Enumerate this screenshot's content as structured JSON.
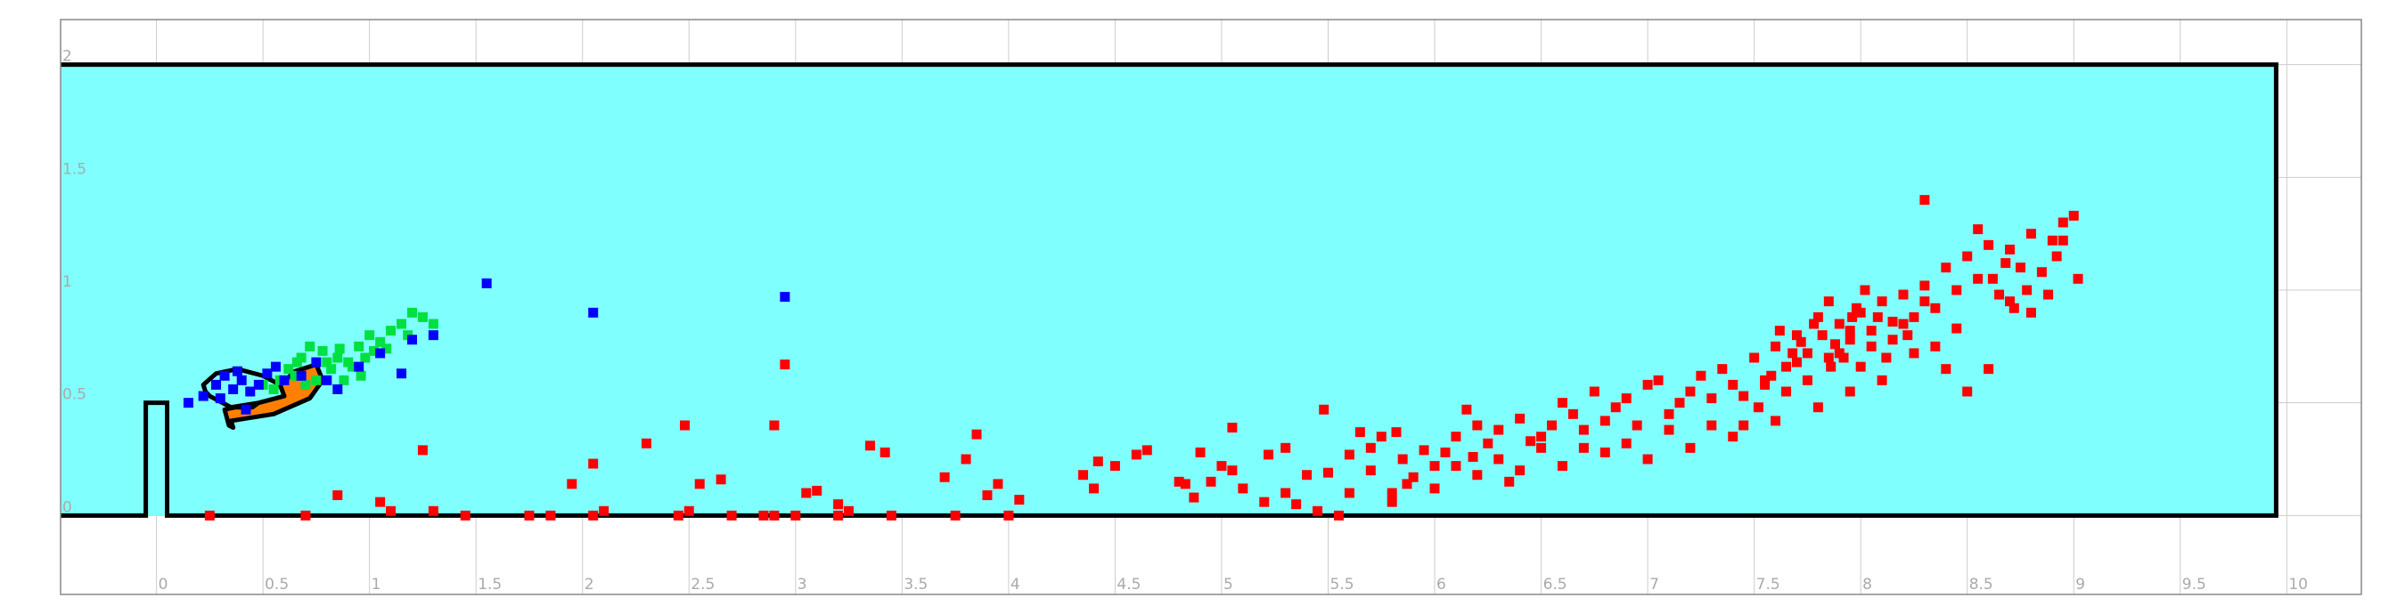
{
  "chart_data": {
    "type": "scatter",
    "title": "",
    "xlabel": "",
    "ylabel": "",
    "xlim": [
      -0.45,
      10.35
    ],
    "ylim": [
      -0.35,
      2.2
    ],
    "grid": true,
    "x_ticks": [
      0,
      0.5,
      1,
      1.5,
      2,
      2.5,
      3,
      3.5,
      4,
      4.5,
      5,
      5.5,
      6,
      6.5,
      7,
      7.5,
      8,
      8.5,
      9,
      9.5,
      10
    ],
    "x_tick_labels": [
      "0",
      "0.5",
      "1",
      "1.5",
      "2",
      "2.5",
      "3",
      "3.5",
      "4",
      "4.5",
      "5",
      "5.5",
      "6",
      "6.5",
      "7",
      "7.5",
      "8",
      "8.5",
      "9",
      "9.5",
      "10"
    ],
    "y_ticks": [
      0,
      0.5,
      1,
      1.5,
      2
    ],
    "y_tick_labels": [
      "0",
      "0.5",
      "1",
      "1.5",
      "2"
    ],
    "colors": {
      "water": "#80ffff",
      "boundary": "#000000",
      "grid": "#cccccc",
      "frame": "#888888",
      "tick_label": "#aaaaaa"
    },
    "channel": {
      "x": [
        -0.45,
        9.95
      ],
      "y": [
        0,
        2.0
      ]
    },
    "weir": {
      "x": [
        -0.05,
        0.05
      ],
      "height": 0.5
    },
    "regions": [
      {
        "color": "#ff8000",
        "outline": [
          [
            0.35,
            0.42
          ],
          [
            0.55,
            0.45
          ],
          [
            0.72,
            0.52
          ],
          [
            0.78,
            0.6
          ],
          [
            0.75,
            0.67
          ],
          [
            0.65,
            0.64
          ],
          [
            0.55,
            0.55
          ],
          [
            0.45,
            0.48
          ],
          [
            0.37,
            0.48
          ],
          [
            0.32,
            0.47
          ],
          [
            0.34,
            0.4
          ],
          [
            0.36,
            0.39
          ]
        ]
      },
      {
        "color": "#80ffff",
        "outline": [
          [
            0.25,
            0.53
          ],
          [
            0.35,
            0.48
          ],
          [
            0.48,
            0.5
          ],
          [
            0.6,
            0.53
          ],
          [
            0.58,
            0.58
          ],
          [
            0.5,
            0.62
          ],
          [
            0.38,
            0.65
          ],
          [
            0.28,
            0.63
          ],
          [
            0.22,
            0.58
          ],
          [
            0.23,
            0.55
          ]
        ]
      }
    ],
    "series": [
      {
        "color": "#00e040",
        "points": [
          [
            0.55,
            0.56
          ],
          [
            0.62,
            0.65
          ],
          [
            0.68,
            0.7
          ],
          [
            0.72,
            0.75
          ],
          [
            0.78,
            0.73
          ],
          [
            0.85,
            0.7
          ],
          [
            0.9,
            0.68
          ],
          [
            0.95,
            0.75
          ],
          [
            1.0,
            0.8
          ],
          [
            1.05,
            0.77
          ],
          [
            1.1,
            0.82
          ],
          [
            1.15,
            0.85
          ],
          [
            1.2,
            0.9
          ],
          [
            1.25,
            0.88
          ],
          [
            1.3,
            0.85
          ],
          [
            0.65,
            0.62
          ],
          [
            0.75,
            0.6
          ],
          [
            0.82,
            0.65
          ],
          [
            0.88,
            0.6
          ],
          [
            0.92,
            0.66
          ],
          [
            0.98,
            0.7
          ],
          [
            1.02,
            0.73
          ],
          [
            0.7,
            0.58
          ],
          [
            0.58,
            0.6
          ],
          [
            0.8,
            0.68
          ],
          [
            0.96,
            0.62
          ],
          [
            0.5,
            0.58
          ],
          [
            0.66,
            0.68
          ],
          [
            1.08,
            0.74
          ],
          [
            1.18,
            0.8
          ],
          [
            0.86,
            0.74
          ]
        ]
      },
      {
        "color": "#0000ff",
        "points": [
          [
            0.15,
            0.5
          ],
          [
            0.22,
            0.53
          ],
          [
            0.28,
            0.58
          ],
          [
            0.32,
            0.62
          ],
          [
            0.36,
            0.56
          ],
          [
            0.4,
            0.6
          ],
          [
            0.44,
            0.55
          ],
          [
            0.48,
            0.58
          ],
          [
            0.52,
            0.63
          ],
          [
            0.56,
            0.66
          ],
          [
            0.6,
            0.6
          ],
          [
            0.68,
            0.62
          ],
          [
            0.75,
            0.68
          ],
          [
            0.8,
            0.6
          ],
          [
            0.85,
            0.56
          ],
          [
            0.95,
            0.66
          ],
          [
            1.05,
            0.72
          ],
          [
            1.15,
            0.63
          ],
          [
            1.2,
            0.78
          ],
          [
            1.3,
            0.8
          ],
          [
            1.55,
            1.03
          ],
          [
            2.05,
            0.9
          ],
          [
            2.95,
            0.97
          ],
          [
            0.3,
            0.52
          ],
          [
            0.42,
            0.47
          ],
          [
            0.38,
            0.64
          ]
        ]
      },
      {
        "color": "#ff0000",
        "points": [
          [
            0.25,
            0.0
          ],
          [
            0.7,
            0.0
          ],
          [
            0.85,
            0.09
          ],
          [
            1.05,
            0.06
          ],
          [
            1.1,
            0.02
          ],
          [
            1.25,
            0.29
          ],
          [
            1.3,
            0.02
          ],
          [
            1.45,
            0.0
          ],
          [
            1.75,
            0.0
          ],
          [
            1.85,
            0.0
          ],
          [
            1.95,
            0.14
          ],
          [
            2.05,
            0.23
          ],
          [
            2.05,
            0.0
          ],
          [
            2.1,
            0.02
          ],
          [
            2.3,
            0.32
          ],
          [
            2.45,
            0.0
          ],
          [
            2.5,
            0.02
          ],
          [
            2.48,
            0.4
          ],
          [
            2.55,
            0.14
          ],
          [
            2.65,
            0.16
          ],
          [
            2.7,
            0.0
          ],
          [
            2.85,
            0.0
          ],
          [
            2.9,
            0.4
          ],
          [
            2.9,
            0.0
          ],
          [
            2.95,
            0.67
          ],
          [
            3.0,
            0.0
          ],
          [
            3.05,
            0.1
          ],
          [
            3.1,
            0.11
          ],
          [
            3.2,
            0.0
          ],
          [
            3.2,
            0.05
          ],
          [
            3.25,
            0.02
          ],
          [
            3.35,
            0.31
          ],
          [
            3.42,
            0.28
          ],
          [
            3.45,
            0.0
          ],
          [
            3.7,
            0.17
          ],
          [
            3.75,
            0.0
          ],
          [
            3.85,
            0.36
          ],
          [
            3.8,
            0.25
          ],
          [
            3.9,
            0.09
          ],
          [
            3.95,
            0.14
          ],
          [
            4.0,
            0.0
          ],
          [
            4.05,
            0.07
          ],
          [
            4.35,
            0.18
          ],
          [
            4.4,
            0.12
          ],
          [
            4.42,
            0.24
          ],
          [
            4.5,
            0.22
          ],
          [
            4.6,
            0.27
          ],
          [
            4.65,
            0.29
          ],
          [
            4.8,
            0.15
          ],
          [
            4.83,
            0.14
          ],
          [
            4.87,
            0.08
          ],
          [
            4.9,
            0.28
          ],
          [
            4.95,
            0.15
          ],
          [
            5.0,
            0.22
          ],
          [
            5.05,
            0.2
          ],
          [
            5.05,
            0.39
          ],
          [
            5.2,
            0.06
          ],
          [
            5.22,
            0.27
          ],
          [
            5.3,
            0.1
          ],
          [
            5.35,
            0.05
          ],
          [
            5.4,
            0.18
          ],
          [
            5.45,
            0.02
          ],
          [
            5.48,
            0.47
          ],
          [
            5.5,
            0.19
          ],
          [
            5.55,
            0.0
          ],
          [
            5.6,
            0.27
          ],
          [
            5.65,
            0.37
          ],
          [
            5.7,
            0.3
          ],
          [
            5.75,
            0.35
          ],
          [
            5.8,
            0.1
          ],
          [
            5.82,
            0.37
          ],
          [
            5.85,
            0.25
          ],
          [
            5.87,
            0.14
          ],
          [
            5.95,
            0.29
          ],
          [
            6.0,
            0.22
          ],
          [
            6.05,
            0.28
          ],
          [
            6.1,
            0.35
          ],
          [
            6.15,
            0.47
          ],
          [
            6.18,
            0.26
          ],
          [
            6.2,
            0.4
          ],
          [
            6.25,
            0.32
          ],
          [
            6.3,
            0.38
          ],
          [
            6.35,
            0.15
          ],
          [
            6.4,
            0.43
          ],
          [
            6.45,
            0.33
          ],
          [
            6.5,
            0.3
          ],
          [
            6.55,
            0.4
          ],
          [
            6.6,
            0.5
          ],
          [
            6.65,
            0.45
          ],
          [
            6.7,
            0.38
          ],
          [
            6.75,
            0.55
          ],
          [
            6.8,
            0.42
          ],
          [
            6.85,
            0.48
          ],
          [
            6.9,
            0.52
          ],
          [
            6.95,
            0.4
          ],
          [
            7.0,
            0.58
          ],
          [
            7.05,
            0.6
          ],
          [
            7.1,
            0.45
          ],
          [
            7.15,
            0.5
          ],
          [
            7.2,
            0.55
          ],
          [
            7.25,
            0.62
          ],
          [
            7.3,
            0.4
          ],
          [
            7.35,
            0.65
          ],
          [
            7.4,
            0.58
          ],
          [
            7.45,
            0.53
          ],
          [
            7.5,
            0.7
          ],
          [
            7.55,
            0.6
          ],
          [
            7.6,
            0.75
          ],
          [
            7.65,
            0.66
          ],
          [
            7.7,
            0.8
          ],
          [
            7.75,
            0.72
          ],
          [
            7.8,
            0.88
          ],
          [
            7.85,
            0.7
          ],
          [
            7.9,
            0.85
          ],
          [
            7.95,
            0.78
          ],
          [
            8.0,
            0.9
          ],
          [
            8.05,
            0.82
          ],
          [
            8.1,
            0.95
          ],
          [
            8.15,
            0.86
          ],
          [
            8.2,
            0.98
          ],
          [
            8.25,
            0.88
          ],
          [
            8.3,
            1.02
          ],
          [
            8.35,
            0.92
          ],
          [
            8.4,
            1.1
          ],
          [
            8.45,
            1.0
          ],
          [
            8.5,
            1.15
          ],
          [
            8.55,
            1.05
          ],
          [
            8.6,
            1.2
          ],
          [
            8.65,
            0.98
          ],
          [
            8.7,
            1.18
          ],
          [
            8.75,
            1.1
          ],
          [
            8.8,
            1.25
          ],
          [
            8.85,
            1.08
          ],
          [
            8.9,
            1.22
          ],
          [
            8.95,
            1.3
          ],
          [
            9.0,
            1.33
          ],
          [
            9.02,
            1.05
          ],
          [
            8.3,
            1.4
          ],
          [
            8.55,
            1.27
          ],
          [
            8.95,
            1.22
          ],
          [
            8.7,
            0.95
          ],
          [
            8.5,
            0.55
          ],
          [
            8.6,
            0.65
          ],
          [
            8.25,
            0.72
          ],
          [
            8.1,
            0.6
          ],
          [
            7.95,
            0.55
          ],
          [
            7.8,
            0.48
          ],
          [
            7.6,
            0.42
          ],
          [
            7.4,
            0.35
          ],
          [
            7.2,
            0.3
          ],
          [
            7.0,
            0.25
          ],
          [
            6.8,
            0.28
          ],
          [
            6.6,
            0.22
          ],
          [
            6.4,
            0.2
          ],
          [
            6.2,
            0.18
          ],
          [
            6.0,
            0.12
          ],
          [
            5.8,
            0.06
          ],
          [
            7.85,
            0.95
          ],
          [
            7.9,
            0.72
          ],
          [
            8.0,
            0.66
          ],
          [
            8.05,
            0.75
          ],
          [
            7.75,
            0.6
          ],
          [
            7.7,
            0.68
          ],
          [
            7.65,
            0.55
          ],
          [
            8.15,
            0.78
          ],
          [
            8.2,
            0.85
          ],
          [
            7.95,
            0.82
          ],
          [
            7.82,
            0.8
          ],
          [
            7.88,
            0.76
          ],
          [
            7.92,
            0.7
          ],
          [
            8.08,
            0.88
          ],
          [
            7.72,
            0.77
          ],
          [
            7.98,
            0.92
          ],
          [
            7.58,
            0.62
          ],
          [
            7.52,
            0.48
          ],
          [
            7.45,
            0.4
          ],
          [
            7.3,
            0.52
          ],
          [
            7.1,
            0.38
          ],
          [
            6.9,
            0.32
          ],
          [
            6.7,
            0.3
          ],
          [
            6.5,
            0.35
          ],
          [
            6.3,
            0.25
          ],
          [
            6.1,
            0.22
          ],
          [
            5.9,
            0.17
          ],
          [
            5.7,
            0.2
          ],
          [
            5.6,
            0.1
          ],
          [
            5.3,
            0.3
          ],
          [
            5.1,
            0.12
          ],
          [
            8.35,
            0.75
          ],
          [
            8.45,
            0.83
          ],
          [
            8.4,
            0.65
          ],
          [
            8.3,
            0.95
          ],
          [
            8.62,
            1.05
          ],
          [
            8.72,
            0.92
          ],
          [
            8.8,
            0.9
          ],
          [
            8.92,
            1.15
          ],
          [
            8.68,
            1.12
          ],
          [
            8.78,
            1.0
          ],
          [
            8.88,
            0.98
          ],
          [
            7.86,
            0.66
          ],
          [
            7.78,
            0.85
          ],
          [
            8.12,
            0.7
          ],
          [
            8.22,
            0.8
          ],
          [
            7.68,
            0.72
          ],
          [
            7.62,
            0.82
          ],
          [
            7.55,
            0.58
          ],
          [
            8.02,
            1.0
          ],
          [
            7.96,
            0.88
          ]
        ]
      }
    ]
  }
}
